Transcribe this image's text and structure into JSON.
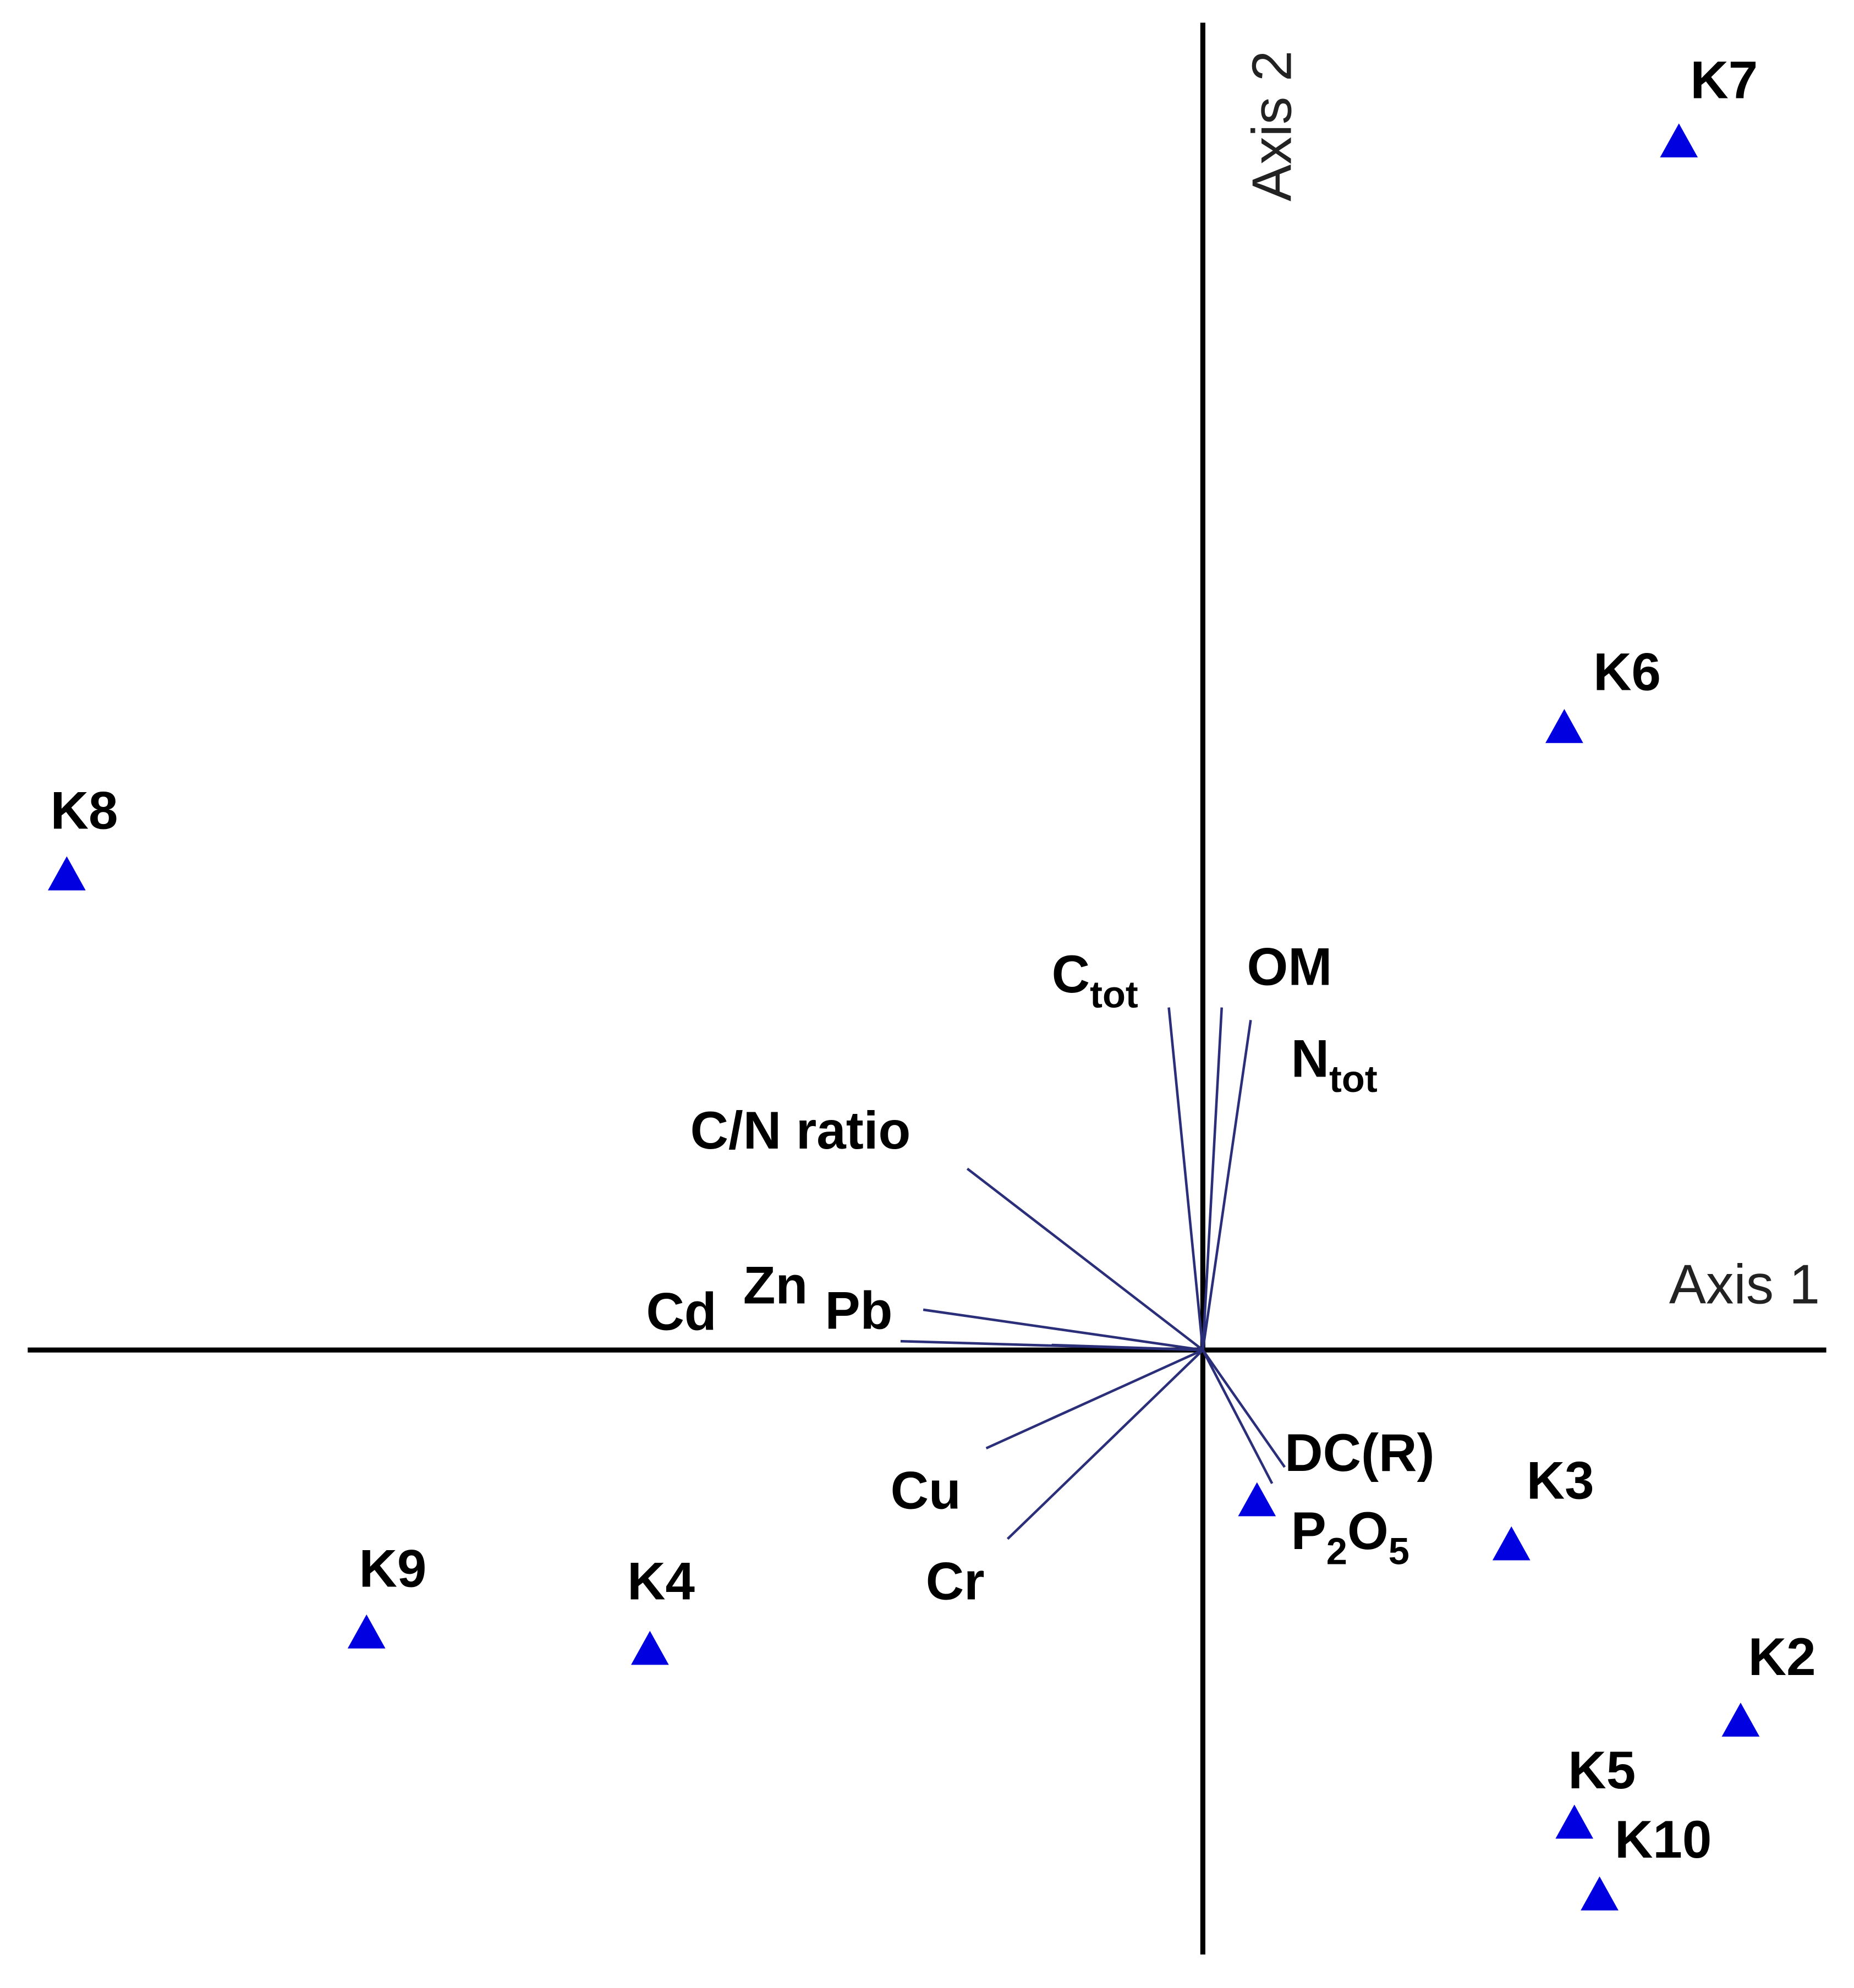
{
  "chart_data": {
    "type": "biplot",
    "axis_labels": {
      "x": "Axis 1",
      "y": "Axis 2"
    },
    "xlim": [
      -9.33,
      4.95
    ],
    "ylim": [
      -4.8,
      10.54
    ],
    "sites": {
      "names": [
        "K7",
        "K6",
        "K8",
        "K9",
        "K4",
        "K3",
        null,
        "K2",
        "K5",
        "K10"
      ],
      "x": [
        3.78,
        2.87,
        -9.02,
        -6.64,
        -4.39,
        2.45,
        0.43,
        4.27,
        2.95,
        3.15
      ],
      "y": [
        9.59,
        4.94,
        3.77,
        -2.25,
        -2.38,
        -1.55,
        -1.2,
        -2.95,
        -3.76,
        -4.33
      ],
      "color": "#0000e0"
    },
    "vectors": {
      "labels": [
        [
          "C",
          "tot"
        ],
        [
          "OM"
        ],
        [
          "N",
          "tot"
        ],
        [
          "C/N ratio"
        ],
        [
          "Pb"
        ],
        [
          "Zn"
        ],
        [
          "Cd"
        ],
        [
          "Cu"
        ],
        [
          "Cr"
        ],
        [
          "DC(R)"
        ],
        [
          "P",
          "2",
          "O",
          "5"
        ]
      ],
      "x": [
        -0.27,
        0.15,
        0.38,
        -1.87,
        -2.22,
        -2.4,
        -1.2,
        -1.72,
        -1.55,
        0.65,
        0.55
      ],
      "y": [
        2.72,
        2.72,
        2.62,
        1.44,
        0.32,
        0.07,
        0.04,
        -0.78,
        -1.5,
        -0.93,
        -1.06
      ],
      "color": "#2b2f7a"
    }
  }
}
